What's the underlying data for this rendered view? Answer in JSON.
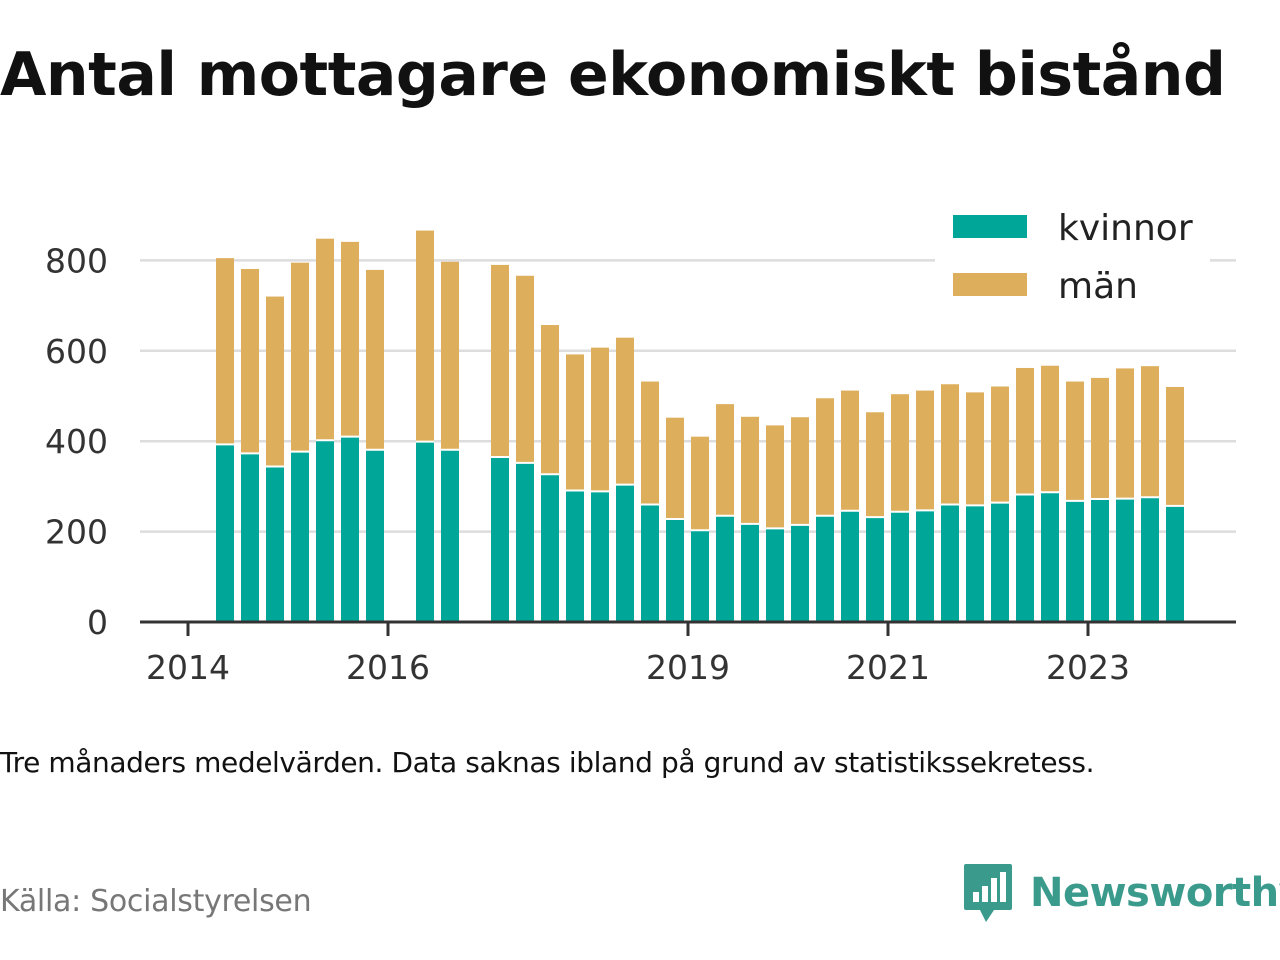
{
  "title": "Antal mottagare ekonomiskt bistånd",
  "caption": "Tre månaders medelvärden. Data saknas ibland på grund av statistikssekretess.",
  "source": "Källa: Socialstyrelsen",
  "brand": {
    "name": "Newsworthy",
    "icon": "newsworthy-logo-icon",
    "color": "#3a9a8c"
  },
  "colors": {
    "kvinnor": "#00a698",
    "man": "#ddae5c",
    "grid": "#dddddd",
    "axis": "#333333"
  },
  "chart_data": {
    "type": "bar",
    "stacked": true,
    "title": "Antal mottagare ekonomiskt bistånd",
    "xlabel": "",
    "ylabel": "",
    "ylim": [
      0,
      900
    ],
    "yticks": [
      0,
      200,
      400,
      600,
      800
    ],
    "xticks": [
      "2014",
      "2016",
      "2019",
      "2021",
      "2023"
    ],
    "grid": true,
    "legend_position": "top-right",
    "categories": [
      "2014 Q2",
      "2014 Q3",
      "2014 Q4",
      "2015 Q1",
      "2015 Q2",
      "2015 Q3",
      "2015 Q4",
      "2016 Q1",
      "2016 Q2",
      "2016 Q3",
      "2016 Q4",
      "2017 Q1",
      "2017 Q2",
      "2017 Q3",
      "2017 Q4",
      "2018 Q1",
      "2018 Q2",
      "2018 Q3",
      "2018 Q4",
      "2019 Q1",
      "2019 Q2",
      "2019 Q3",
      "2019 Q4",
      "2020 Q1",
      "2020 Q2",
      "2020 Q3",
      "2020 Q4",
      "2021 Q1",
      "2021 Q2",
      "2021 Q3",
      "2021 Q4",
      "2022 Q1",
      "2022 Q2",
      "2022 Q3",
      "2022 Q4",
      "2023 Q1",
      "2023 Q2",
      "2023 Q3",
      "2023 Q4"
    ],
    "series": [
      {
        "name": "kvinnor",
        "values": [
          393,
          373,
          344,
          377,
          402,
          410,
          381,
          null,
          399,
          381,
          null,
          365,
          352,
          327,
          291,
          289,
          304,
          260,
          228,
          203,
          235,
          217,
          207,
          215,
          235,
          246,
          232,
          244,
          247,
          260,
          258,
          264,
          282,
          287,
          268,
          272,
          273,
          276,
          257
        ]
      },
      {
        "name": "män",
        "values": [
          412,
          408,
          376,
          418,
          446,
          431,
          398,
          null,
          467,
          416,
          null,
          425,
          414,
          330,
          301,
          318,
          325,
          272,
          224,
          207,
          247,
          237,
          228,
          238,
          260,
          266,
          232,
          260,
          265,
          266,
          250,
          257,
          280,
          280,
          264,
          268,
          288,
          290,
          263
        ]
      }
    ]
  }
}
